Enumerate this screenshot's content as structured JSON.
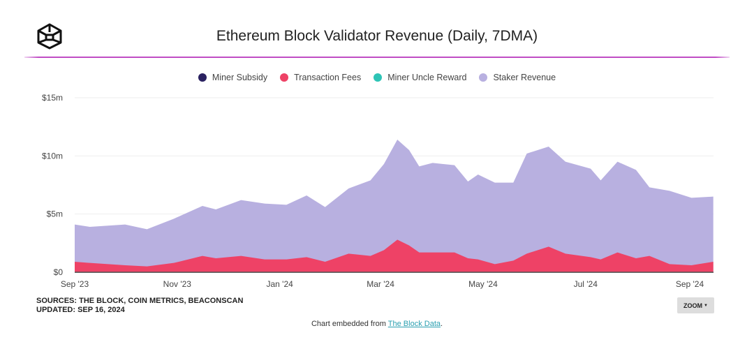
{
  "header": {
    "title": "Ethereum Block Validator Revenue (Daily, 7DMA)",
    "logo": "the-block-cube-logo"
  },
  "footer": {
    "sources": "SOURCES: THE BLOCK, COIN METRICS, BEACONSCAN",
    "updated": "UPDATED: SEP 16, 2024",
    "zoom_label": "ZOOM",
    "embed_prefix": "Chart embedded from ",
    "embed_link": "The Block Data",
    "embed_suffix": "."
  },
  "chart_data": {
    "type": "area",
    "stacked": true,
    "title": "Ethereum Block Validator Revenue (Daily, 7DMA)",
    "legend_position": "top",
    "grid": true,
    "ylim": [
      0,
      15
    ],
    "yticks": [
      {
        "v": 0,
        "label": "$0"
      },
      {
        "v": 5,
        "label": "$5m"
      },
      {
        "v": 10,
        "label": "$10m"
      },
      {
        "v": 15,
        "label": "$15m"
      }
    ],
    "xticks": [
      {
        "d": "2023-09-01",
        "label": "Sep '23"
      },
      {
        "d": "2023-11-01",
        "label": "Nov '23"
      },
      {
        "d": "2024-01-01",
        "label": "Jan '24"
      },
      {
        "d": "2024-03-01",
        "label": "Mar '24"
      },
      {
        "d": "2024-05-01",
        "label": "May '24"
      },
      {
        "d": "2024-07-01",
        "label": "Jul '24"
      },
      {
        "d": "2024-09-01",
        "label": "Sep '24"
      }
    ],
    "x": [
      "2023-09-01",
      "2023-09-10",
      "2023-10-01",
      "2023-10-14",
      "2023-10-30",
      "2023-11-16",
      "2023-11-24",
      "2023-12-09",
      "2023-12-23",
      "2024-01-05",
      "2024-01-17",
      "2024-01-28",
      "2024-02-11",
      "2024-02-24",
      "2024-03-03",
      "2024-03-11",
      "2024-03-18",
      "2024-03-24",
      "2024-04-01",
      "2024-04-14",
      "2024-04-22",
      "2024-04-28",
      "2024-05-08",
      "2024-05-19",
      "2024-05-27",
      "2024-06-09",
      "2024-06-19",
      "2024-07-04",
      "2024-07-10",
      "2024-07-20",
      "2024-07-31",
      "2024-08-08",
      "2024-08-20",
      "2024-09-02",
      "2024-09-15"
    ],
    "series": [
      {
        "name": "Miner Subsidy",
        "color": "#2a2160",
        "values": [
          0,
          0,
          0,
          0,
          0,
          0,
          0,
          0,
          0,
          0,
          0,
          0,
          0,
          0,
          0,
          0,
          0,
          0,
          0,
          0,
          0,
          0,
          0,
          0,
          0,
          0,
          0,
          0,
          0,
          0,
          0,
          0,
          0,
          0,
          0
        ]
      },
      {
        "name": "Transaction Fees",
        "color": "#ee4266",
        "values": [
          0.9,
          0.8,
          0.6,
          0.5,
          0.8,
          1.4,
          1.2,
          1.4,
          1.1,
          1.1,
          1.3,
          0.9,
          1.6,
          1.4,
          1.9,
          2.8,
          2.3,
          1.7,
          1.7,
          1.7,
          1.2,
          1.1,
          0.7,
          1.0,
          1.6,
          2.2,
          1.6,
          1.3,
          1.1,
          1.7,
          1.2,
          1.4,
          0.7,
          0.6,
          0.9
        ]
      },
      {
        "name": "Miner Uncle Reward",
        "color": "#2ec4b6",
        "values": [
          0,
          0,
          0,
          0,
          0,
          0,
          0,
          0,
          0,
          0,
          0,
          0,
          0,
          0,
          0,
          0,
          0,
          0,
          0,
          0,
          0,
          0,
          0,
          0,
          0,
          0,
          0,
          0,
          0,
          0,
          0,
          0,
          0,
          0,
          0
        ]
      },
      {
        "name": "Staker Revenue",
        "color": "#b8b0e0",
        "values": [
          3.2,
          3.1,
          3.5,
          3.2,
          3.8,
          4.3,
          4.2,
          4.8,
          4.8,
          4.7,
          5.3,
          4.7,
          5.6,
          6.5,
          7.4,
          8.6,
          8.2,
          7.4,
          7.7,
          7.5,
          6.6,
          7.3,
          7.0,
          6.7,
          8.6,
          8.6,
          7.9,
          7.6,
          6.8,
          7.8,
          7.6,
          5.9,
          6.3,
          5.8,
          5.6
        ]
      }
    ]
  }
}
